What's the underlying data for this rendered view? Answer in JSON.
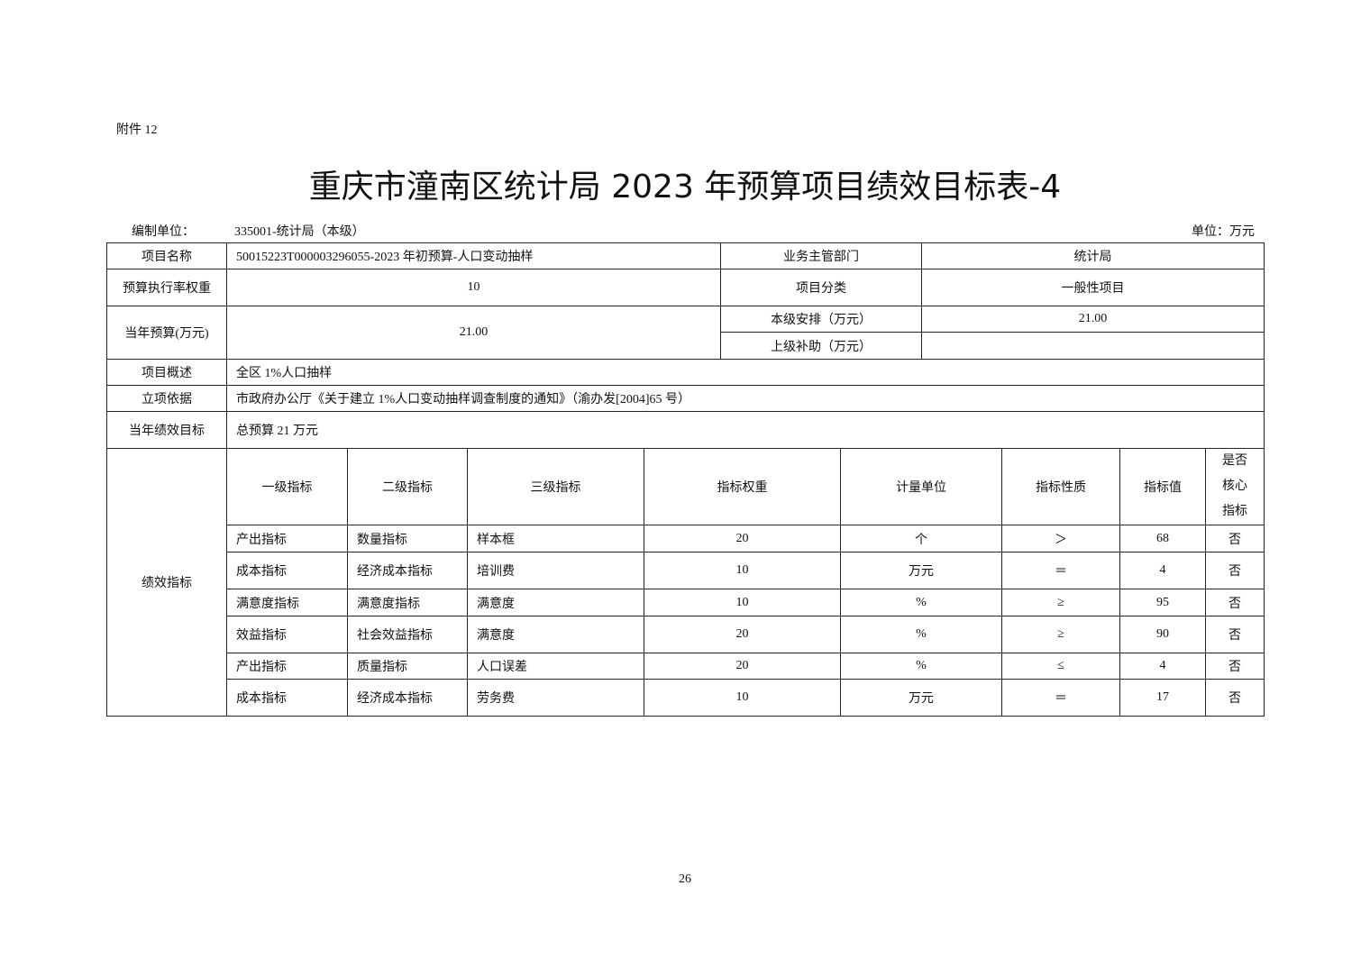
{
  "attachment": "附件 12",
  "title": "重庆市潼南区统计局 2023 年预算项目绩效目标表-4",
  "compiler_label": "编制单位：",
  "compiler_value": "335001-统计局（本级）",
  "unit": "单位：万元",
  "info": {
    "project_name_label": "项目名称",
    "project_name": "50015223T000003296055-2023 年初预算-人口变动抽样",
    "dept_label": "业务主管部门",
    "dept": "统计局",
    "weight_label": "预算执行率权重",
    "weight": "10",
    "category_label": "项目分类",
    "category": "一般性项目",
    "budget_label": "当年预算(万元)",
    "budget": "21.00",
    "local_label": "本级安排（万元）",
    "local": "21.00",
    "subsidy_label": "上级补助（万元）",
    "subsidy": "",
    "overview_label": "项目概述",
    "overview": "全区 1%人口抽样",
    "basis_label": "立项依据",
    "basis": "市政府办公厅《关于建立 1%人口变动抽样调查制度的通知》（渝办发[2004]65 号）",
    "goal_label": "当年绩效目标",
    "goal": "总预算 21 万元"
  },
  "indicators": {
    "section_label": "绩效指标",
    "headers": [
      "一级指标",
      "二级指标",
      "三级指标",
      "指标权重",
      "计量单位",
      "指标性质",
      "指标值",
      "是否核心指标"
    ],
    "rows": [
      [
        "产出指标",
        "数量指标",
        "样本框",
        "20",
        "个",
        "＞",
        "68",
        "否"
      ],
      [
        "成本指标",
        "经济成本指标",
        "培训费",
        "10",
        "万元",
        "＝",
        "4",
        "否"
      ],
      [
        "满意度指标",
        "满意度指标",
        "满意度",
        "10",
        "%",
        "≥",
        "95",
        "否"
      ],
      [
        "效益指标",
        "社会效益指标",
        "满意度",
        "20",
        "%",
        "≥",
        "90",
        "否"
      ],
      [
        "产出指标",
        "质量指标",
        "人口误差",
        "20",
        "%",
        "≤",
        "4",
        "否"
      ],
      [
        "成本指标",
        "经济成本指标",
        "劳务费",
        "10",
        "万元",
        "＝",
        "17",
        "否"
      ]
    ]
  },
  "page_number": "26"
}
